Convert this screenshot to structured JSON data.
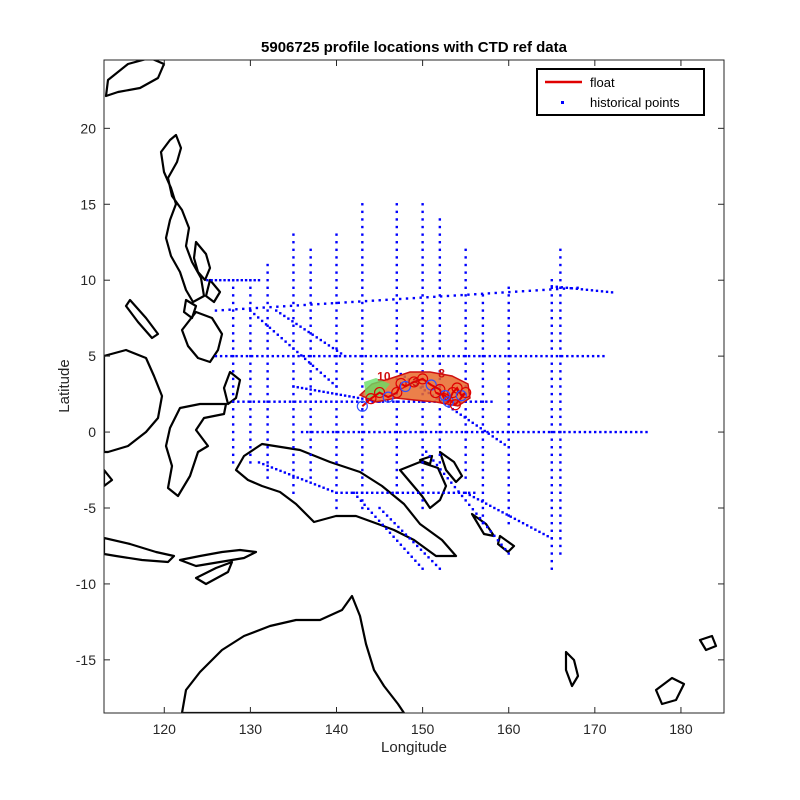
{
  "chart_data": {
    "type": "scatter",
    "title": "5906725 profile locations with CTD ref data",
    "xlabel": "Longitude",
    "ylabel": "Latitude",
    "xlim": [
      113,
      185
    ],
    "ylim": [
      -18.5,
      24.5
    ],
    "xticks": [
      120,
      130,
      140,
      150,
      160,
      170,
      180
    ],
    "yticks": [
      -15,
      -10,
      -5,
      0,
      5,
      10,
      15,
      20
    ],
    "grid": false,
    "legend": {
      "position": "top-right",
      "entries": [
        {
          "label": "float",
          "marker": "line",
          "color": "#e00000"
        },
        {
          "label": "historical points",
          "marker": "dot",
          "color": "#0000ff"
        }
      ]
    },
    "series": [
      {
        "name": "float",
        "kind": "track",
        "color": "#e00000",
        "points": [
          [
            143.0,
            1.7
          ],
          [
            144.0,
            2.2
          ],
          [
            145.0,
            2.6
          ],
          [
            146.0,
            2.3
          ],
          [
            147.0,
            2.6
          ],
          [
            147.5,
            3.2
          ],
          [
            148.0,
            3.0
          ],
          [
            149.0,
            3.3
          ],
          [
            150.0,
            3.5
          ],
          [
            151.0,
            3.1
          ],
          [
            152.0,
            2.8
          ],
          [
            152.5,
            2.2
          ],
          [
            153.0,
            2.0
          ],
          [
            153.5,
            2.6
          ],
          [
            154.0,
            2.9
          ],
          [
            154.5,
            2.4
          ],
          [
            155.0,
            2.6
          ],
          [
            153.8,
            1.8
          ],
          [
            152.6,
            2.4
          ],
          [
            151.5,
            2.6
          ]
        ]
      },
      {
        "name": "historical points",
        "kind": "dots",
        "color": "#0000ff",
        "segments": [
          [
            128,
            10,
            128,
            -2,
            0.5
          ],
          [
            130,
            10,
            130,
            -2,
            0.5
          ],
          [
            132,
            11,
            132,
            -3,
            0.5
          ],
          [
            135,
            13,
            135,
            -4,
            0.5
          ],
          [
            137,
            12,
            137,
            -3,
            0.5
          ],
          [
            140,
            13,
            140,
            -5,
            0.5
          ],
          [
            143,
            15,
            143,
            -5,
            0.5
          ],
          [
            147,
            15,
            147,
            -4,
            0.5
          ],
          [
            150,
            15,
            150,
            -5,
            0.5
          ],
          [
            152,
            14,
            152,
            -2,
            0.5
          ],
          [
            155,
            12,
            155,
            -3,
            0.5
          ],
          [
            157,
            9,
            157,
            -6,
            0.5
          ],
          [
            160,
            9.5,
            160,
            -6,
            0.5
          ],
          [
            165,
            10,
            165,
            -9,
            0.5
          ],
          [
            166,
            12,
            166,
            -8,
            0.5
          ],
          [
            125,
            10,
            131,
            10,
            0.5
          ],
          [
            126,
            8,
            168,
            9.5,
            0.8
          ],
          [
            126,
            5,
            171,
            5,
            0.6
          ],
          [
            128,
            2,
            158,
            2,
            0.6
          ],
          [
            148,
            0,
            176,
            0,
            0.6
          ],
          [
            136,
            0,
            148,
            0,
            0.6
          ],
          [
            135,
            3,
            145,
            2,
            0.5
          ],
          [
            130,
            8,
            140,
            3,
            0.5
          ],
          [
            142,
            -4,
            150,
            -9,
            0.5
          ],
          [
            145,
            -5,
            152,
            -9,
            0.5
          ],
          [
            150,
            -1,
            160,
            -8,
            0.5
          ],
          [
            155,
            -4,
            165,
            -7,
            0.5
          ],
          [
            140,
            -4,
            156,
            -4,
            0.6
          ],
          [
            131,
            -2,
            140,
            -4,
            0.5
          ],
          [
            133,
            8,
            141,
            5,
            0.5
          ],
          [
            147,
            4,
            160,
            -1,
            0.5
          ],
          [
            165,
            9.6,
            172,
            9.2,
            0.6
          ]
        ]
      }
    ],
    "profile_labels": [
      {
        "text": "10",
        "lon": 145.5,
        "lat": 3.4
      },
      {
        "text": "8",
        "lon": 152.2,
        "lat": 3.6
      },
      {
        "text": "3",
        "lon": 149.2,
        "lat": 3.0
      }
    ]
  }
}
